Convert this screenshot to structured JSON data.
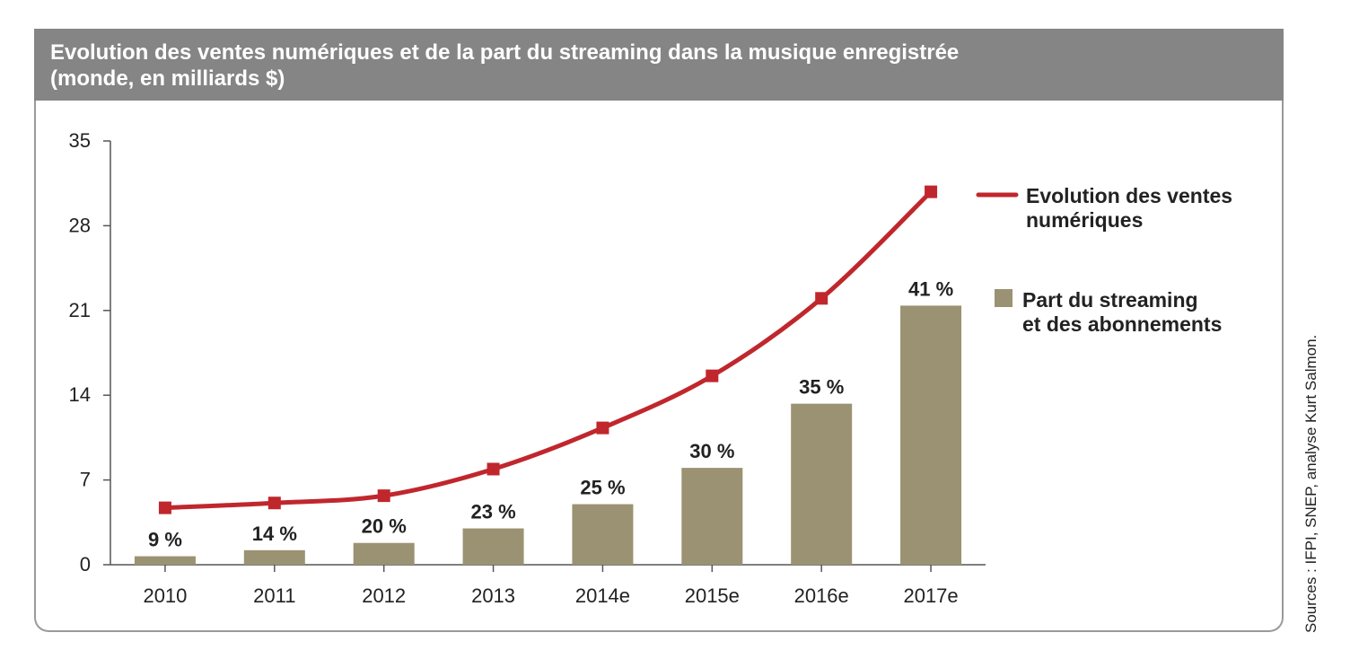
{
  "title": {
    "line1": "Evolution des ventes numériques et de la part du streaming dans la musique enregistrée",
    "line2": "(monde, en milliards $)"
  },
  "source": "Sources : IFPI, SNEP, analyse Kurt Salmon.",
  "colors": {
    "line": "#c0272d",
    "bar": "#9a9272",
    "title_bg": "#858585",
    "axis": "#555555"
  },
  "chart_data": {
    "type": "bar",
    "categories": [
      "2010",
      "2011",
      "2012",
      "2013",
      "2014e",
      "2015e",
      "2016e",
      "2017e"
    ],
    "ylim": [
      0,
      35
    ],
    "yticks": [
      0,
      7,
      14,
      21,
      28,
      35
    ],
    "grid": false,
    "legend_position": "right",
    "series": [
      {
        "name": "Part du streaming et des abonnements",
        "type": "bar",
        "values": [
          0.7,
          1.2,
          1.8,
          3.0,
          5.0,
          8.0,
          13.3,
          21.4
        ],
        "labels": [
          "9 %",
          "14 %",
          "20 %",
          "23 %",
          "25 %",
          "30 %",
          "35 %",
          "41 %"
        ]
      },
      {
        "name": "Evolution des ventes numériques",
        "type": "line",
        "values": [
          4.7,
          5.1,
          5.7,
          7.9,
          11.3,
          15.6,
          22.0,
          30.8
        ]
      }
    ],
    "legend": [
      {
        "line1": "Evolution des ventes",
        "line2": "numériques",
        "marker": "line"
      },
      {
        "line1": "Part du streaming",
        "line2": "et des abonnements",
        "marker": "square"
      }
    ]
  }
}
